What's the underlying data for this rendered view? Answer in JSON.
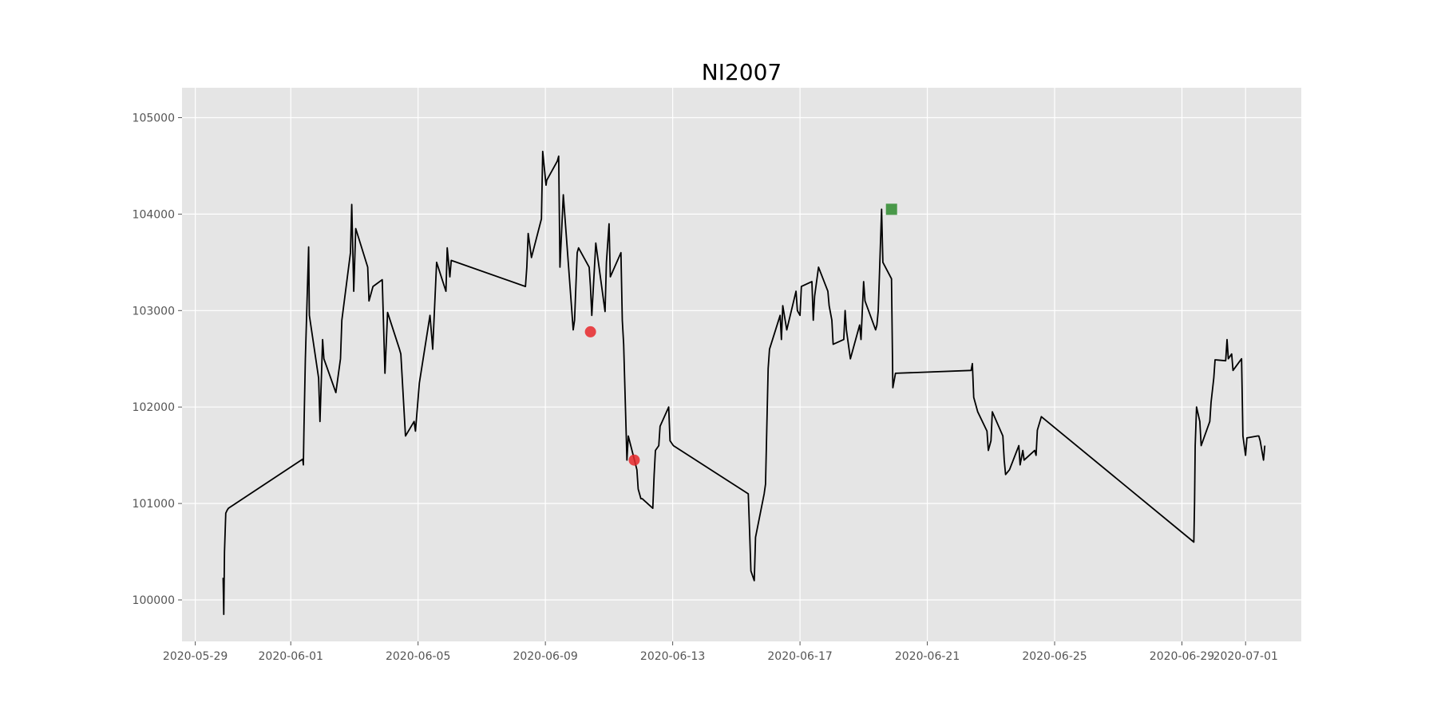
{
  "chart_data": {
    "type": "line",
    "title": "NI2007",
    "xlabel": "",
    "ylabel": "",
    "grid": true,
    "colors": {
      "background": "#e5e5e5",
      "grid": "#ffffff",
      "line": "#000000",
      "buy_marker": "#e8282b",
      "sell_marker": "#2e8b2e"
    },
    "xlim": [
      "2020-05-28T14:00",
      "2020-07-02T18:00"
    ],
    "ylim": [
      99570,
      105310
    ],
    "x_ticks": [
      "2020-05-29",
      "2020-06-01",
      "2020-06-05",
      "2020-06-09",
      "2020-06-13",
      "2020-06-17",
      "2020-06-21",
      "2020-06-25",
      "2020-06-29",
      "2020-07-01"
    ],
    "y_ticks": [
      100000,
      101000,
      102000,
      103000,
      104000,
      105000
    ],
    "series": [
      {
        "type": "line",
        "x": [
          "2020-05-29T21:00",
          "2020-05-29T21:30",
          "2020-05-29T22:00",
          "2020-05-29T23:00",
          "2020-05-30T00:00",
          "2020-05-30T01:00",
          "2020-06-01T09:00",
          "2020-06-01T09:30",
          "2020-06-01T10:00",
          "2020-06-01T11:00",
          "2020-06-01T13:30",
          "2020-06-01T14:00",
          "2020-06-01T21:00",
          "2020-06-01T22:00",
          "2020-06-02T00:00",
          "2020-06-02T01:00",
          "2020-06-02T10:00",
          "2020-06-02T13:30",
          "2020-06-02T14:30",
          "2020-06-02T21:00",
          "2020-06-02T22:00",
          "2020-06-02T23:30",
          "2020-06-03T01:00",
          "2020-06-03T10:00",
          "2020-06-03T11:00",
          "2020-06-03T14:00",
          "2020-06-03T21:00",
          "2020-06-03T23:00",
          "2020-06-04T01:00",
          "2020-06-04T10:00",
          "2020-06-04T11:00",
          "2020-06-04T14:30",
          "2020-06-04T21:00",
          "2020-06-04T22:00",
          "2020-06-05T01:00",
          "2020-06-05T09:00",
          "2020-06-05T10:30",
          "2020-06-05T11:00",
          "2020-06-05T14:00",
          "2020-06-05T21:00",
          "2020-06-05T22:00",
          "2020-06-06T00:00",
          "2020-06-06T01:00",
          "2020-06-08T09:00",
          "2020-06-08T10:00",
          "2020-06-08T11:00",
          "2020-06-08T13:30",
          "2020-06-08T21:00",
          "2020-06-08T22:00",
          "2020-06-09T00:30",
          "2020-06-09T01:00",
          "2020-06-09T09:00",
          "2020-06-09T10:00",
          "2020-06-09T11:00",
          "2020-06-09T13:30",
          "2020-06-09T21:00",
          "2020-06-09T22:00",
          "2020-06-10T00:00",
          "2020-06-10T01:00",
          "2020-06-10T09:00",
          "2020-06-10T10:00",
          "2020-06-10T11:00",
          "2020-06-10T14:00",
          "2020-06-10T21:00",
          "2020-06-10T22:00",
          "2020-06-11T00:00",
          "2020-06-11T01:00",
          "2020-06-11T09:00",
          "2020-06-11T10:00",
          "2020-06-11T11:00",
          "2020-06-11T13:30",
          "2020-06-11T14:30",
          "2020-06-11T21:00",
          "2020-06-11T22:00",
          "2020-06-12T00:00",
          "2020-06-12T01:00",
          "2020-06-12T09:00",
          "2020-06-12T10:00",
          "2020-06-12T11:00",
          "2020-06-12T13:30",
          "2020-06-12T14:30",
          "2020-06-12T21:00",
          "2020-06-12T22:00",
          "2020-06-13T00:30",
          "2020-06-15T09:00",
          "2020-06-15T10:00",
          "2020-06-15T11:00",
          "2020-06-15T13:30",
          "2020-06-15T14:30",
          "2020-06-15T21:00",
          "2020-06-15T22:00",
          "2020-06-16T00:00",
          "2020-06-16T01:00",
          "2020-06-16T09:00",
          "2020-06-16T10:00",
          "2020-06-16T11:00",
          "2020-06-16T14:00",
          "2020-06-16T21:00",
          "2020-06-16T22:00",
          "2020-06-17T00:00",
          "2020-06-17T01:00",
          "2020-06-17T09:00",
          "2020-06-17T10:00",
          "2020-06-17T11:00",
          "2020-06-17T14:00",
          "2020-06-17T21:00",
          "2020-06-17T22:00",
          "2020-06-18T00:00",
          "2020-06-18T01:00",
          "2020-06-18T09:00",
          "2020-06-18T10:00",
          "2020-06-18T11:00",
          "2020-06-18T14:00",
          "2020-06-18T21:00",
          "2020-06-18T22:00",
          "2020-06-19T00:00",
          "2020-06-19T01:00",
          "2020-06-19T09:00",
          "2020-06-19T10:00",
          "2020-06-19T11:00",
          "2020-06-19T13:30",
          "2020-06-19T14:30",
          "2020-06-19T21:00",
          "2020-06-19T22:00",
          "2020-06-20T00:00",
          "2020-06-22T09:00",
          "2020-06-22T10:00",
          "2020-06-22T11:00",
          "2020-06-22T14:00",
          "2020-06-22T21:00",
          "2020-06-22T22:00",
          "2020-06-23T00:00",
          "2020-06-23T01:00",
          "2020-06-23T09:00",
          "2020-06-23T10:00",
          "2020-06-23T11:00",
          "2020-06-23T14:00",
          "2020-06-23T21:00",
          "2020-06-23T22:00",
          "2020-06-24T00:00",
          "2020-06-24T01:00",
          "2020-06-24T09:00",
          "2020-06-24T10:00",
          "2020-06-24T11:00",
          "2020-06-24T14:00",
          "2020-06-29T09:00",
          "2020-06-29T09:30",
          "2020-06-29T10:00",
          "2020-06-29T11:00",
          "2020-06-29T13:30",
          "2020-06-29T14:30",
          "2020-06-29T21:00",
          "2020-06-29T22:00",
          "2020-06-30T00:00",
          "2020-06-30T01:00",
          "2020-06-30T09:00",
          "2020-06-30T10:00",
          "2020-06-30T11:00",
          "2020-06-30T13:30",
          "2020-06-30T14:30",
          "2020-06-30T21:00",
          "2020-06-30T22:00",
          "2020-07-01T00:00",
          "2020-07-01T01:00",
          "2020-07-01T09:00",
          "2020-07-01T10:00",
          "2020-07-01T11:00",
          "2020-07-01T13:30",
          "2020-07-01T14:30"
        ],
        "values": [
          100230,
          99850,
          100500,
          100900,
          100930,
          100950,
          101460,
          101400,
          101800,
          102500,
          103660,
          102950,
          102300,
          101850,
          102700,
          102500,
          102150,
          102500,
          102900,
          103600,
          104100,
          103200,
          103850,
          103450,
          103100,
          103250,
          103320,
          102350,
          102980,
          102600,
          102550,
          101700,
          101850,
          101750,
          102250,
          102950,
          102700,
          102600,
          103500,
          103200,
          103650,
          103350,
          103520,
          103250,
          103450,
          103800,
          103550,
          103950,
          104650,
          104300,
          104350,
          104550,
          104600,
          103450,
          104200,
          102800,
          102900,
          103600,
          103650,
          103450,
          103250,
          102950,
          103700,
          102990,
          103500,
          103900,
          103350,
          103600,
          102900,
          102650,
          101450,
          101700,
          101350,
          101150,
          101050,
          101050,
          100950,
          101300,
          101550,
          101600,
          101800,
          102000,
          101650,
          101600,
          101100,
          100700,
          100300,
          100200,
          100650,
          101100,
          101200,
          102400,
          102600,
          102950,
          102700,
          103050,
          102800,
          103200,
          103000,
          102950,
          103250,
          103300,
          102900,
          103150,
          103450,
          103200,
          103050,
          102900,
          102650,
          102700,
          103000,
          102800,
          102500,
          102850,
          102700,
          103300,
          103100,
          102800,
          102850,
          103000,
          104050,
          103500,
          103330,
          102200,
          102350,
          102380,
          102450,
          102100,
          101950,
          101750,
          101550,
          101650,
          101950,
          101700,
          101450,
          101300,
          101350,
          101600,
          101400,
          101550,
          101450,
          101550,
          101500,
          101760,
          101900,
          100600,
          101000,
          101600,
          102000,
          101850,
          101600,
          101850,
          102050,
          102300,
          102490,
          102480,
          102700,
          102500,
          102550,
          102380,
          102500,
          101700,
          101500,
          101680,
          101700,
          101700,
          101650,
          101450,
          101600
        ]
      }
    ],
    "markers": [
      {
        "kind": "buy",
        "x": "2020-06-10T10:00",
        "y": 102780,
        "color": "#e8282b",
        "shape": "circle"
      },
      {
        "kind": "buy",
        "x": "2020-06-11T19:00",
        "y": 101450,
        "color": "#e8282b",
        "shape": "circle"
      },
      {
        "kind": "sell",
        "x": "2020-06-19T21:00",
        "y": 104050,
        "color": "#2e8b2e",
        "shape": "square"
      }
    ]
  }
}
